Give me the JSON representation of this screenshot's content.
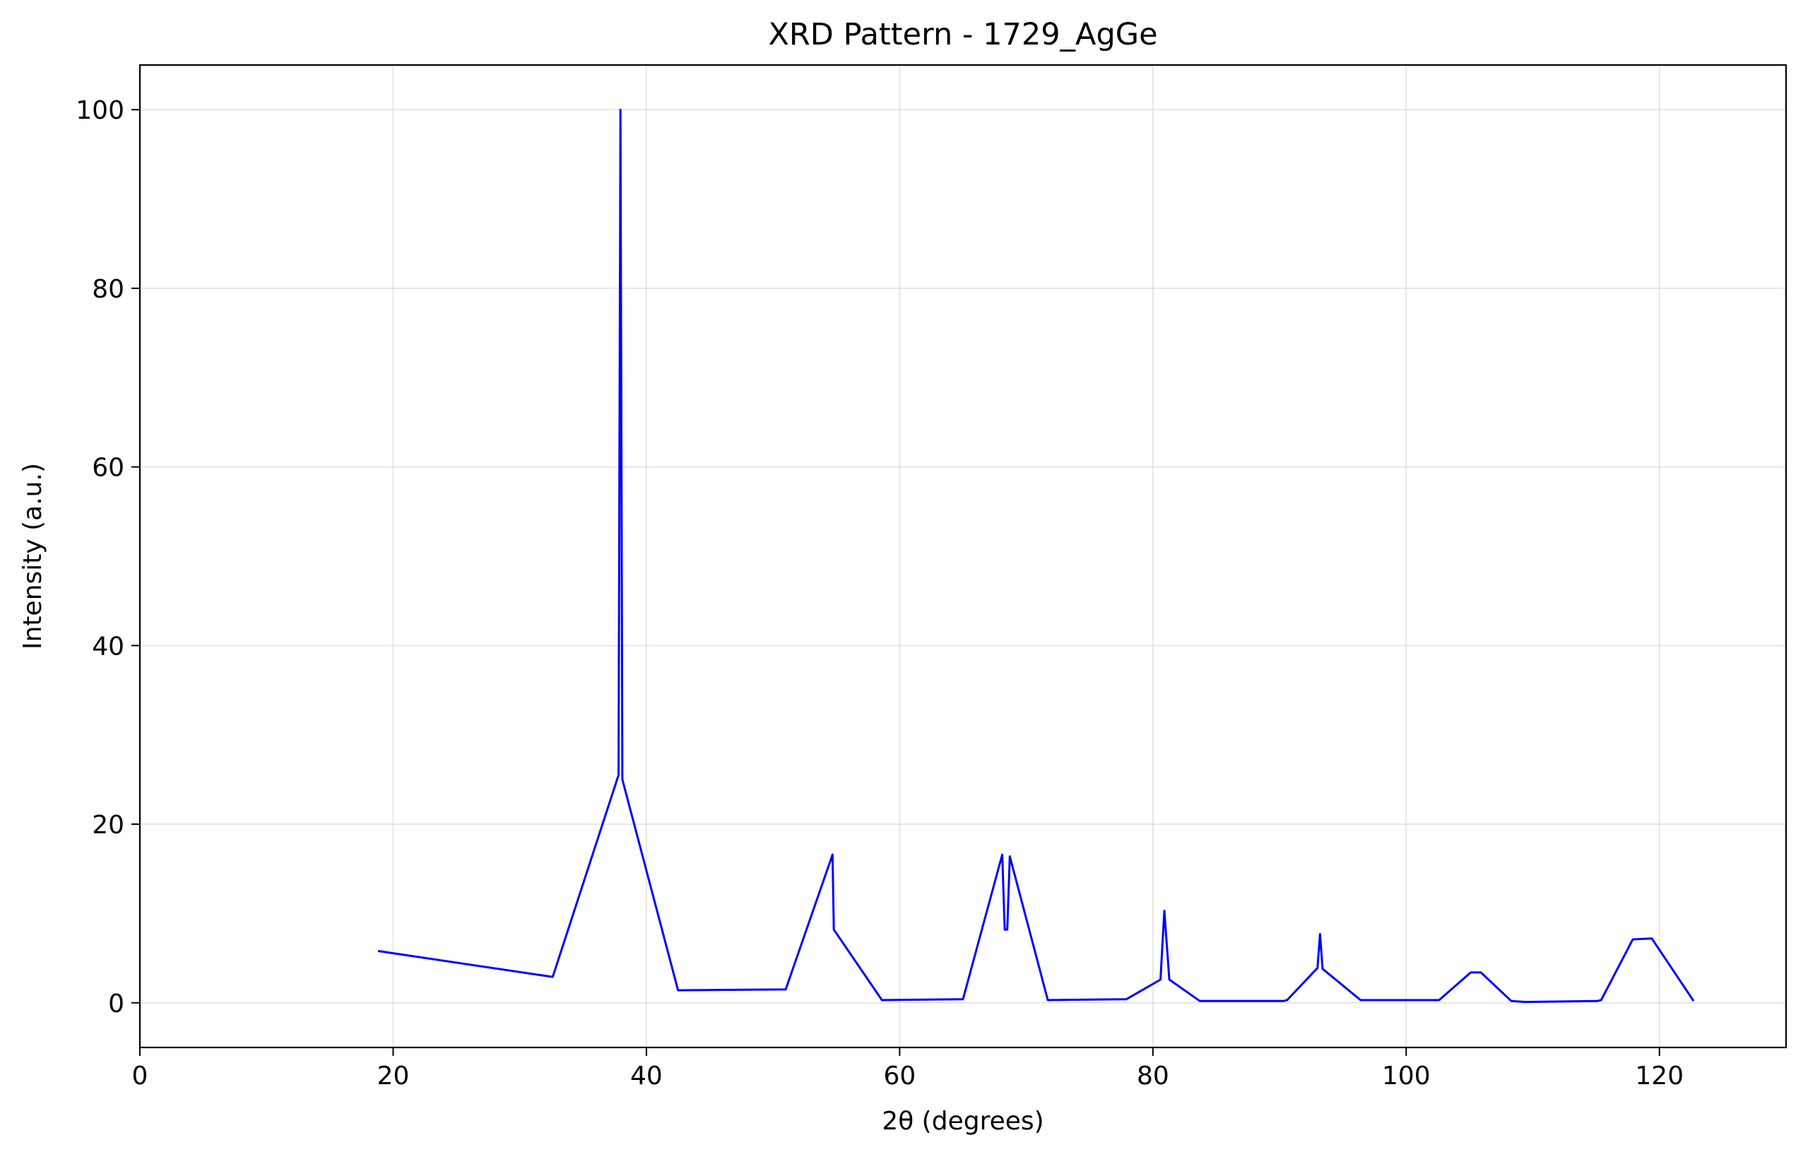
{
  "chart_data": {
    "type": "line",
    "title": "XRD Pattern - 1729_AgGe",
    "xlabel": "2θ (degrees)",
    "ylabel": "Intensity (a.u.)",
    "xlim": [
      0,
      130
    ],
    "ylim": [
      -5,
      105
    ],
    "xticks": [
      0,
      20,
      40,
      60,
      80,
      100,
      120
    ],
    "yticks": [
      0,
      20,
      40,
      60,
      80,
      100
    ],
    "grid": true,
    "line_color": "#0000ff",
    "series": [
      {
        "x": [
          18.8,
          32.6,
          37.8,
          37.95,
          38.1,
          42.5,
          51.0,
          54.7,
          54.8,
          58.6,
          65.0,
          68.1,
          68.3,
          68.5,
          68.7,
          71.7,
          77.9,
          80.6,
          80.9,
          81.3,
          83.7,
          90.3,
          90.6,
          93.0,
          93.2,
          93.4,
          96.4,
          102.6,
          105.1,
          105.9,
          108.3,
          109.4,
          115.1,
          115.4,
          117.9,
          119.4,
          122.7
        ],
        "y": [
          5.8,
          2.9,
          25.5,
          100,
          25.0,
          1.4,
          1.5,
          16.6,
          8.2,
          0.3,
          0.4,
          16.6,
          8.2,
          8.2,
          16.4,
          0.3,
          0.4,
          2.6,
          10.3,
          2.6,
          0.2,
          0.2,
          0.3,
          3.9,
          7.7,
          3.8,
          0.3,
          0.3,
          3.4,
          3.4,
          0.2,
          0.1,
          0.2,
          0.3,
          7.1,
          7.2,
          0.2
        ]
      }
    ]
  }
}
